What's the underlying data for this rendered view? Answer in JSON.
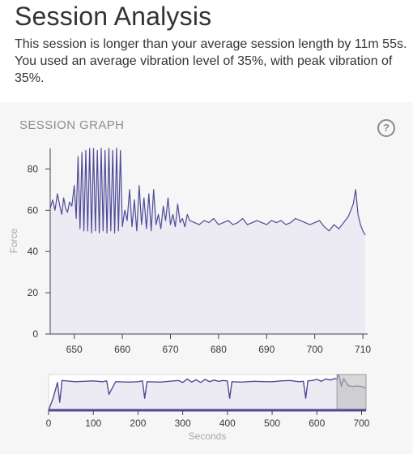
{
  "header": {
    "title": "Session Analysis",
    "description": "This session is longer than your average session length by 11m 55s. You used an average vibration level of 35%, with peak vibration of 35%."
  },
  "graph": {
    "title": "SESSION GRAPH",
    "help_icon": "question-circle-icon",
    "help_glyph": "?"
  },
  "colors": {
    "line": "#4f4a97",
    "fill": "#ecebf4",
    "panel_bg": "#f6f6f6",
    "window_highlight": "#bdbdbd"
  },
  "chart_data": [
    {
      "type": "line",
      "ylabel": "Force",
      "xlim": [
        645,
        711
      ],
      "ylim": [
        0,
        90
      ],
      "yticks": [
        0,
        20,
        40,
        60,
        80
      ],
      "xticks": [
        650,
        660,
        670,
        680,
        690,
        700,
        710
      ],
      "grid": false,
      "series": [
        {
          "x": [
            645,
            645.5,
            646,
            646.5,
            647,
            647.4,
            647.8,
            648.2,
            648.6,
            649,
            649.5,
            650,
            650.4,
            650.8,
            651.2,
            651.6,
            652,
            652.4,
            652.8,
            653.2,
            653.6,
            654,
            654.4,
            654.8,
            655.2,
            655.6,
            656,
            656.4,
            656.8,
            657.2,
            657.6,
            658,
            658.4,
            658.8,
            659.2,
            659.6,
            660,
            660.5,
            661,
            661.5,
            662,
            662.5,
            663,
            663.5,
            664,
            664.5,
            665,
            665.5,
            666,
            666.5,
            667,
            667.5,
            668,
            668.5,
            669,
            669.5,
            670,
            670.5,
            671,
            671.5,
            672,
            672.5,
            673,
            673.5,
            674,
            675,
            676,
            677,
            678,
            679,
            680,
            681,
            682,
            683,
            684,
            685,
            686,
            687,
            688,
            689,
            690,
            691,
            692,
            693,
            694,
            695,
            696,
            697,
            698,
            699,
            700,
            701,
            702,
            703,
            704,
            705,
            706,
            707,
            708,
            708.5,
            709,
            709.5,
            710,
            710.5
          ],
          "y": [
            61,
            65,
            60,
            68,
            62,
            58,
            66,
            61,
            59,
            64,
            62,
            72,
            56,
            86,
            51,
            88,
            50,
            89,
            50,
            90,
            49,
            90,
            50,
            89,
            49,
            90,
            50,
            89,
            49,
            90,
            50,
            89,
            49,
            90,
            50,
            89,
            52,
            60,
            55,
            70,
            52,
            65,
            50,
            72,
            53,
            66,
            51,
            68,
            50,
            70,
            53,
            58,
            51,
            62,
            55,
            66,
            53,
            58,
            52,
            63,
            54,
            56,
            52,
            58,
            55,
            54,
            53,
            55,
            54,
            56,
            53,
            54,
            55,
            53,
            54,
            56,
            53,
            54,
            55,
            54,
            53,
            55,
            54,
            55,
            53,
            54,
            56,
            55,
            54,
            53,
            54,
            55,
            52,
            50,
            53,
            51,
            54,
            57,
            63,
            70,
            58,
            53,
            50,
            48
          ]
        }
      ]
    },
    {
      "type": "area",
      "xlabel": "Seconds",
      "xlim": [
        0,
        710
      ],
      "ylim": [
        0,
        90
      ],
      "xticks": [
        0,
        100,
        200,
        300,
        400,
        500,
        600,
        700
      ],
      "grid": false,
      "selection": [
        645,
        711
      ],
      "series": [
        {
          "x": [
            0,
            10,
            20,
            25,
            30,
            60,
            100,
            120,
            130,
            135,
            150,
            180,
            200,
            210,
            215,
            220,
            250,
            270,
            290,
            300,
            310,
            320,
            330,
            340,
            350,
            360,
            370,
            380,
            390,
            400,
            405,
            410,
            430,
            460,
            490,
            500,
            520,
            540,
            560,
            570,
            575,
            580,
            590,
            600,
            610,
            620,
            630,
            640,
            645,
            648,
            650,
            655,
            660,
            670,
            680,
            690,
            700,
            705,
            710
          ],
          "y": [
            0,
            30,
            70,
            20,
            75,
            72,
            74,
            72,
            74,
            40,
            72,
            71,
            72,
            74,
            30,
            72,
            71,
            73,
            75,
            70,
            79,
            71,
            77,
            70,
            78,
            72,
            76,
            73,
            75,
            74,
            30,
            72,
            71,
            73,
            72,
            72,
            74,
            75,
            72,
            73,
            30,
            74,
            75,
            78,
            73,
            79,
            76,
            80,
            78,
            90,
            86,
            60,
            80,
            62,
            60,
            61,
            60,
            58,
            55
          ]
        }
      ]
    }
  ]
}
